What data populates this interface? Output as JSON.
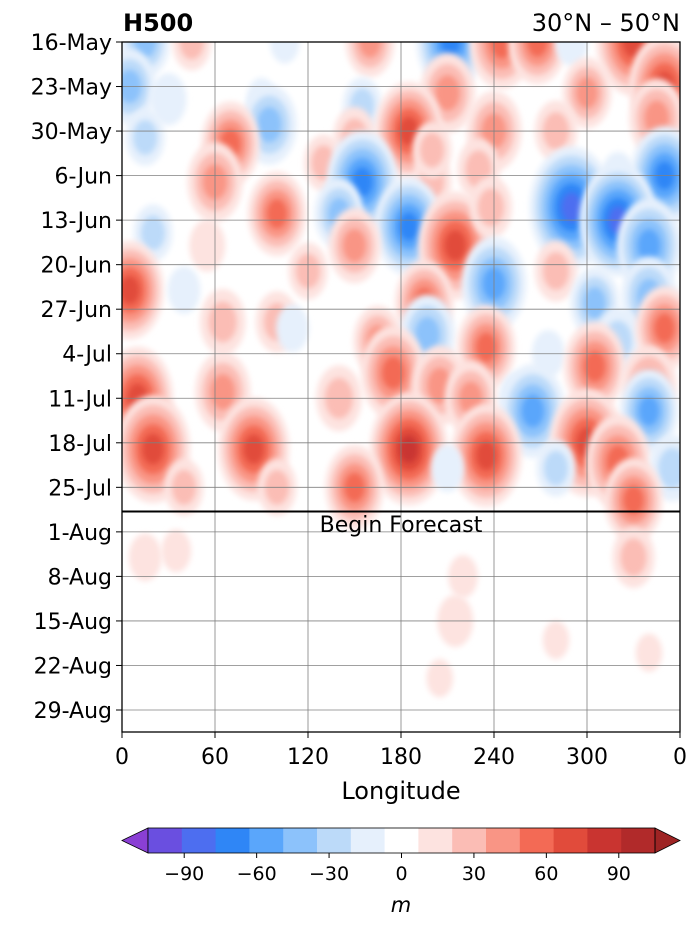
{
  "chart_data": {
    "type": "heatmap",
    "title_left": "H500",
    "title_right": "30°N – 50°N",
    "xlabel": "Longitude",
    "ylabel": "",
    "x_ticks": [
      "0",
      "60",
      "120",
      "180",
      "240",
      "300",
      "0"
    ],
    "y_ticks": [
      "16-May",
      "23-May",
      "30-May",
      "6-Jun",
      "13-Jun",
      "20-Jun",
      "27-Jun",
      "4-Jul",
      "11-Jul",
      "18-Jul",
      "25-Jul",
      "1-Aug",
      "8-Aug",
      "15-Aug",
      "22-Aug",
      "29-Aug"
    ],
    "annotation": "Begin Forecast",
    "forecast_start": "2-Aug",
    "colorbar": {
      "label": "m",
      "levels": [
        -105,
        -90,
        -75,
        -60,
        -45,
        -30,
        -15,
        0,
        15,
        30,
        45,
        60,
        75,
        90,
        105
      ],
      "ticks": [
        "−90",
        "−60",
        "−30",
        "0",
        "30",
        "60",
        "90"
      ],
      "colors": [
        "#8a3fd4",
        "#6a4fe0",
        "#4d6ef0",
        "#2f86f6",
        "#5aa6fb",
        "#8cc2fb",
        "#bcdaf9",
        "#e6f0fc",
        "#ffffff",
        "#fde3e0",
        "#fbbdb5",
        "#f99585",
        "#f36a55",
        "#e14b3b",
        "#c93430",
        "#b12a2a",
        "#9e2424"
      ]
    },
    "anomaly_centers": [
      {
        "lon": 15,
        "date": "16-May",
        "value": -45
      },
      {
        "lon": 45,
        "date": "16-May",
        "value": 30
      },
      {
        "lon": 105,
        "date": "16-May",
        "value": -15
      },
      {
        "lon": 160,
        "date": "16-May",
        "value": 45
      },
      {
        "lon": 212,
        "date": "16-May",
        "value": -75
      },
      {
        "lon": 245,
        "date": "16-May",
        "value": 70
      },
      {
        "lon": 268,
        "date": "16-May",
        "value": 60
      },
      {
        "lon": 290,
        "date": "16-May",
        "value": -20
      },
      {
        "lon": 330,
        "date": "16-May",
        "value": 85
      },
      {
        "lon": 5,
        "date": "23-May",
        "value": -50
      },
      {
        "lon": 30,
        "date": "25-May",
        "value": -25
      },
      {
        "lon": 90,
        "date": "25-May",
        "value": -15
      },
      {
        "lon": 155,
        "date": "26-May",
        "value": -30
      },
      {
        "lon": 210,
        "date": "24-May",
        "value": 55
      },
      {
        "lon": 300,
        "date": "24-May",
        "value": 45
      },
      {
        "lon": 350,
        "date": "23-May",
        "value": 80
      },
      {
        "lon": 95,
        "date": "29-May",
        "value": -55
      },
      {
        "lon": 185,
        "date": "30-May",
        "value": 75
      },
      {
        "lon": 150,
        "date": "31-May",
        "value": 35
      },
      {
        "lon": 240,
        "date": "30-May",
        "value": 55
      },
      {
        "lon": 280,
        "date": "30-May",
        "value": 35
      },
      {
        "lon": 345,
        "date": "28-May",
        "value": 55
      },
      {
        "lon": 15,
        "date": "31-May",
        "value": -30
      },
      {
        "lon": 70,
        "date": "1-Jun",
        "value": 60
      },
      {
        "lon": 60,
        "date": "7-Jun",
        "value": 55
      },
      {
        "lon": 130,
        "date": "4-Jun",
        "value": 30
      },
      {
        "lon": 230,
        "date": "5-Jun",
        "value": 35
      },
      {
        "lon": 200,
        "date": "7-Jun",
        "value": 30
      },
      {
        "lon": 155,
        "date": "7-Jun",
        "value": -80
      },
      {
        "lon": 200,
        "date": "2-Jun",
        "value": 30
      },
      {
        "lon": 320,
        "date": "6-Jun",
        "value": -20
      },
      {
        "lon": 350,
        "date": "6-Jun",
        "value": -75
      },
      {
        "lon": 100,
        "date": "12-Jun",
        "value": 60
      },
      {
        "lon": 140,
        "date": "12-Jun",
        "value": -45
      },
      {
        "lon": 185,
        "date": "14-Jun",
        "value": -75
      },
      {
        "lon": 215,
        "date": "17-Jun",
        "value": 85
      },
      {
        "lon": 238,
        "date": "11-Jun",
        "value": 35
      },
      {
        "lon": 290,
        "date": "11-Jun",
        "value": -100
      },
      {
        "lon": 320,
        "date": "13-Jun",
        "value": -90
      },
      {
        "lon": 340,
        "date": "17-Jun",
        "value": -70
      },
      {
        "lon": 20,
        "date": "15-Jun",
        "value": -30
      },
      {
        "lon": 55,
        "date": "17-Jun",
        "value": 25
      },
      {
        "lon": 150,
        "date": "17-Jun",
        "value": 50
      },
      {
        "lon": 120,
        "date": "21-Jun",
        "value": 30
      },
      {
        "lon": 240,
        "date": "23-Jun",
        "value": -70
      },
      {
        "lon": 280,
        "date": "21-Jun",
        "value": 35
      },
      {
        "lon": 5,
        "date": "24-Jun",
        "value": 75
      },
      {
        "lon": 40,
        "date": "24-Jun",
        "value": -20
      },
      {
        "lon": 195,
        "date": "26-Jun",
        "value": 60
      },
      {
        "lon": 305,
        "date": "26-Jun",
        "value": -45
      },
      {
        "lon": 340,
        "date": "25-Jun",
        "value": -55
      },
      {
        "lon": 320,
        "date": "2-Jul",
        "value": -40
      },
      {
        "lon": 350,
        "date": "30-Jun",
        "value": 60
      },
      {
        "lon": 65,
        "date": "29-Jun",
        "value": 40
      },
      {
        "lon": 100,
        "date": "29-Jun",
        "value": 35
      },
      {
        "lon": 110,
        "date": "30-Jun",
        "value": -20
      },
      {
        "lon": 165,
        "date": "2-Jul",
        "value": 45
      },
      {
        "lon": 197,
        "date": "1-Jul",
        "value": -55
      },
      {
        "lon": 235,
        "date": "3-Jul",
        "value": 60
      },
      {
        "lon": 275,
        "date": "4-Jul",
        "value": -20
      },
      {
        "lon": 305,
        "date": "6-Jul",
        "value": 65
      },
      {
        "lon": 175,
        "date": "7-Jul",
        "value": 70
      },
      {
        "lon": 205,
        "date": "9-Jul",
        "value": 55
      },
      {
        "lon": 255,
        "date": "11-Jul",
        "value": -25
      },
      {
        "lon": 340,
        "date": "9-Jul",
        "value": 55
      },
      {
        "lon": 10,
        "date": "11-Jul",
        "value": 80
      },
      {
        "lon": 65,
        "date": "10-Jul",
        "value": 55
      },
      {
        "lon": 140,
        "date": "11-Jul",
        "value": 40
      },
      {
        "lon": 225,
        "date": "11-Jul",
        "value": 50
      },
      {
        "lon": 265,
        "date": "13-Jul",
        "value": -70
      },
      {
        "lon": 340,
        "date": "13-Jul",
        "value": -60
      },
      {
        "lon": 20,
        "date": "19-Jul",
        "value": 85
      },
      {
        "lon": 85,
        "date": "19-Jul",
        "value": 80
      },
      {
        "lon": 185,
        "date": "19-Jul",
        "value": 90
      },
      {
        "lon": 235,
        "date": "20-Jul",
        "value": 80
      },
      {
        "lon": 300,
        "date": "18-Jul",
        "value": 85
      },
      {
        "lon": 320,
        "date": "21-Jul",
        "value": 70
      },
      {
        "lon": 355,
        "date": "22-Jul",
        "value": -40
      },
      {
        "lon": 280,
        "date": "22-Jul",
        "value": -30
      },
      {
        "lon": 150,
        "date": "25-Jul",
        "value": 60
      },
      {
        "lon": 40,
        "date": "25-Jul",
        "value": 30
      },
      {
        "lon": 100,
        "date": "25-Jul",
        "value": 30
      },
      {
        "lon": 210,
        "date": "22-Jul",
        "value": -20
      },
      {
        "lon": 330,
        "date": "27-Jul",
        "value": 60
      },
      {
        "lon": 15,
        "date": "5-Aug",
        "value": 20
      },
      {
        "lon": 35,
        "date": "4-Aug",
        "value": 15
      },
      {
        "lon": 220,
        "date": "8-Aug",
        "value": 15
      },
      {
        "lon": 215,
        "date": "15-Aug",
        "value": 25
      },
      {
        "lon": 205,
        "date": "24-Aug",
        "value": 10
      },
      {
        "lon": 280,
        "date": "18-Aug",
        "value": 10
      },
      {
        "lon": 330,
        "date": "5-Aug",
        "value": 35
      },
      {
        "lon": 340,
        "date": "20-Aug",
        "value": 10
      }
    ]
  }
}
